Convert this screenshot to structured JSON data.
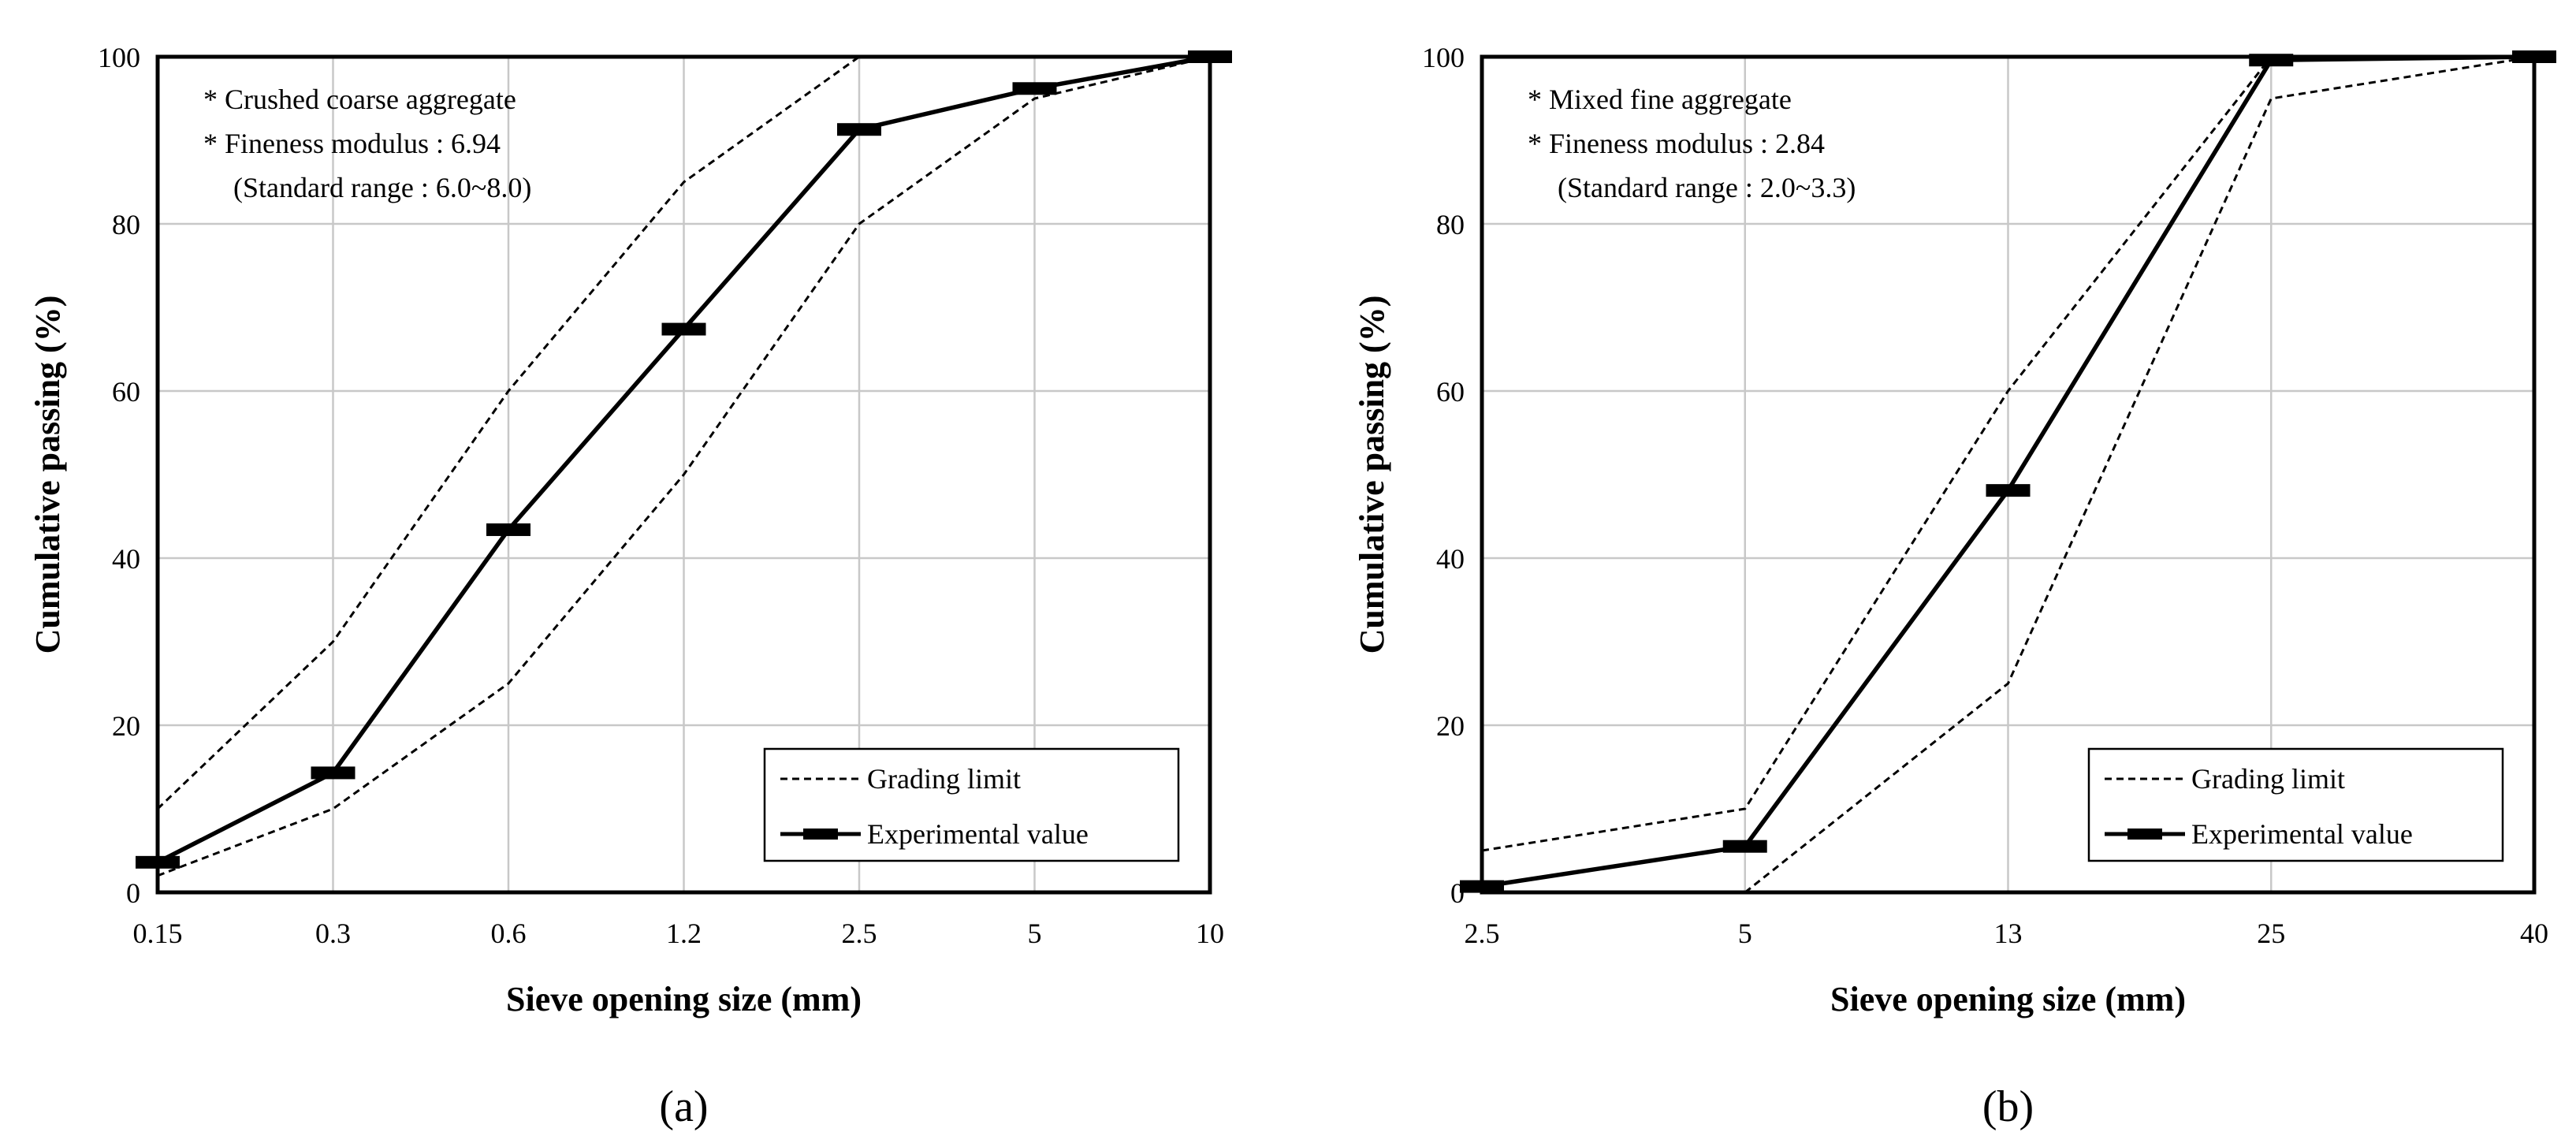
{
  "chart_data": [
    {
      "type": "line",
      "panel_label": "(a)",
      "title": "",
      "xlabel": "Sieve opening size (mm)",
      "ylabel": "Cumulative passing (%)",
      "categories": [
        "0.15",
        "0.3",
        "0.6",
        "1.2",
        "2.5",
        "5",
        "10"
      ],
      "ylim": [
        0,
        100
      ],
      "yticks": [
        "0",
        "20",
        "40",
        "60",
        "80",
        "100"
      ],
      "grid": true,
      "legend_position": "bottom-right",
      "annotations": [
        "* Crushed coarse aggregate",
        "* Fineness modulus : 6.94",
        "(Standard range : 6.0~8.0)"
      ],
      "series": [
        {
          "name": "Grading limit",
          "style": "dashed",
          "role": "upper",
          "values": [
            10,
            30,
            60,
            85,
            100,
            100,
            100
          ]
        },
        {
          "name": "Grading limit",
          "style": "dashed",
          "role": "lower",
          "values": [
            2,
            10,
            25,
            50,
            80,
            95,
            100
          ]
        },
        {
          "name": "Experimental value",
          "style": "solid",
          "values": [
            3.6,
            14.3,
            43.4,
            67.4,
            91.3,
            96.2,
            100
          ]
        }
      ],
      "legend": [
        "Grading limit",
        "Experimental value"
      ]
    },
    {
      "type": "line",
      "panel_label": "(b)",
      "title": "",
      "xlabel": "Sieve opening size (mm)",
      "ylabel": "Cumulative passing (%)",
      "categories": [
        "2.5",
        "5",
        "13",
        "25",
        "40"
      ],
      "ylim": [
        0,
        100
      ],
      "yticks": [
        "0",
        "20",
        "40",
        "60",
        "80",
        "100"
      ],
      "grid": true,
      "legend_position": "bottom-right",
      "annotations": [
        "* Mixed fine aggregate",
        "* Fineness modulus : 2.84",
        "(Standard range : 2.0~3.3)"
      ],
      "series": [
        {
          "name": "Grading limit",
          "style": "dashed",
          "role": "upper",
          "values": [
            5,
            10,
            60,
            100,
            100
          ]
        },
        {
          "name": "Grading limit",
          "style": "dashed",
          "role": "lower",
          "values": [
            null,
            0,
            25,
            95,
            100
          ]
        },
        {
          "name": "Experimental value",
          "style": "solid",
          "values": [
            0.7,
            5.5,
            48.1,
            99.6,
            100
          ]
        }
      ],
      "legend": [
        "Grading limit",
        "Experimental value"
      ]
    }
  ]
}
